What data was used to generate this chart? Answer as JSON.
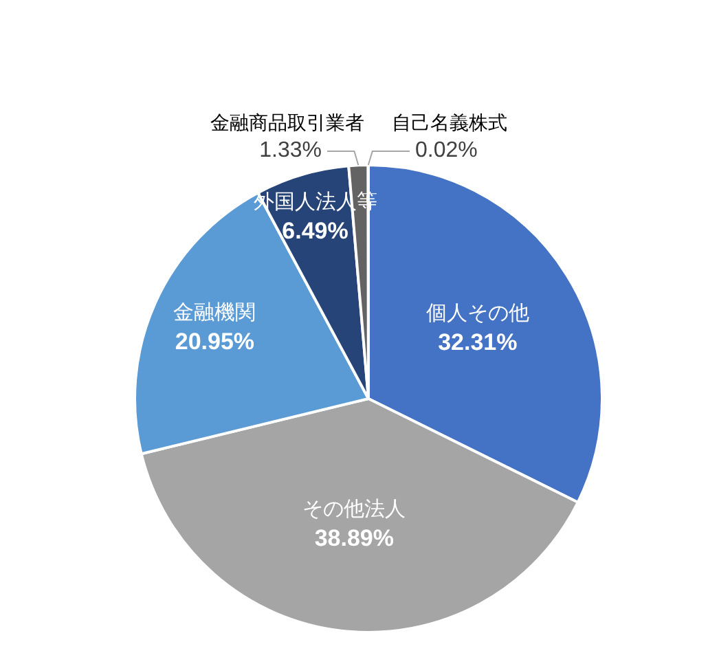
{
  "chart_data": {
    "type": "pie",
    "categories": [
      "個人その他",
      "その他法人",
      "金融機関",
      "外国人法人等",
      "金融商品取引業者",
      "自己名義株式"
    ],
    "values": [
      32.31,
      38.89,
      20.95,
      6.49,
      1.33,
      0.02
    ],
    "colors": [
      "#4472c4",
      "#a5a5a5",
      "#5b9bd5",
      "#264478",
      "#636363",
      "#7f7f7f"
    ],
    "value_labels": [
      "32.31%",
      "38.89%",
      "20.95%",
      "6.49%",
      "1.33%",
      "0.02%"
    ]
  }
}
